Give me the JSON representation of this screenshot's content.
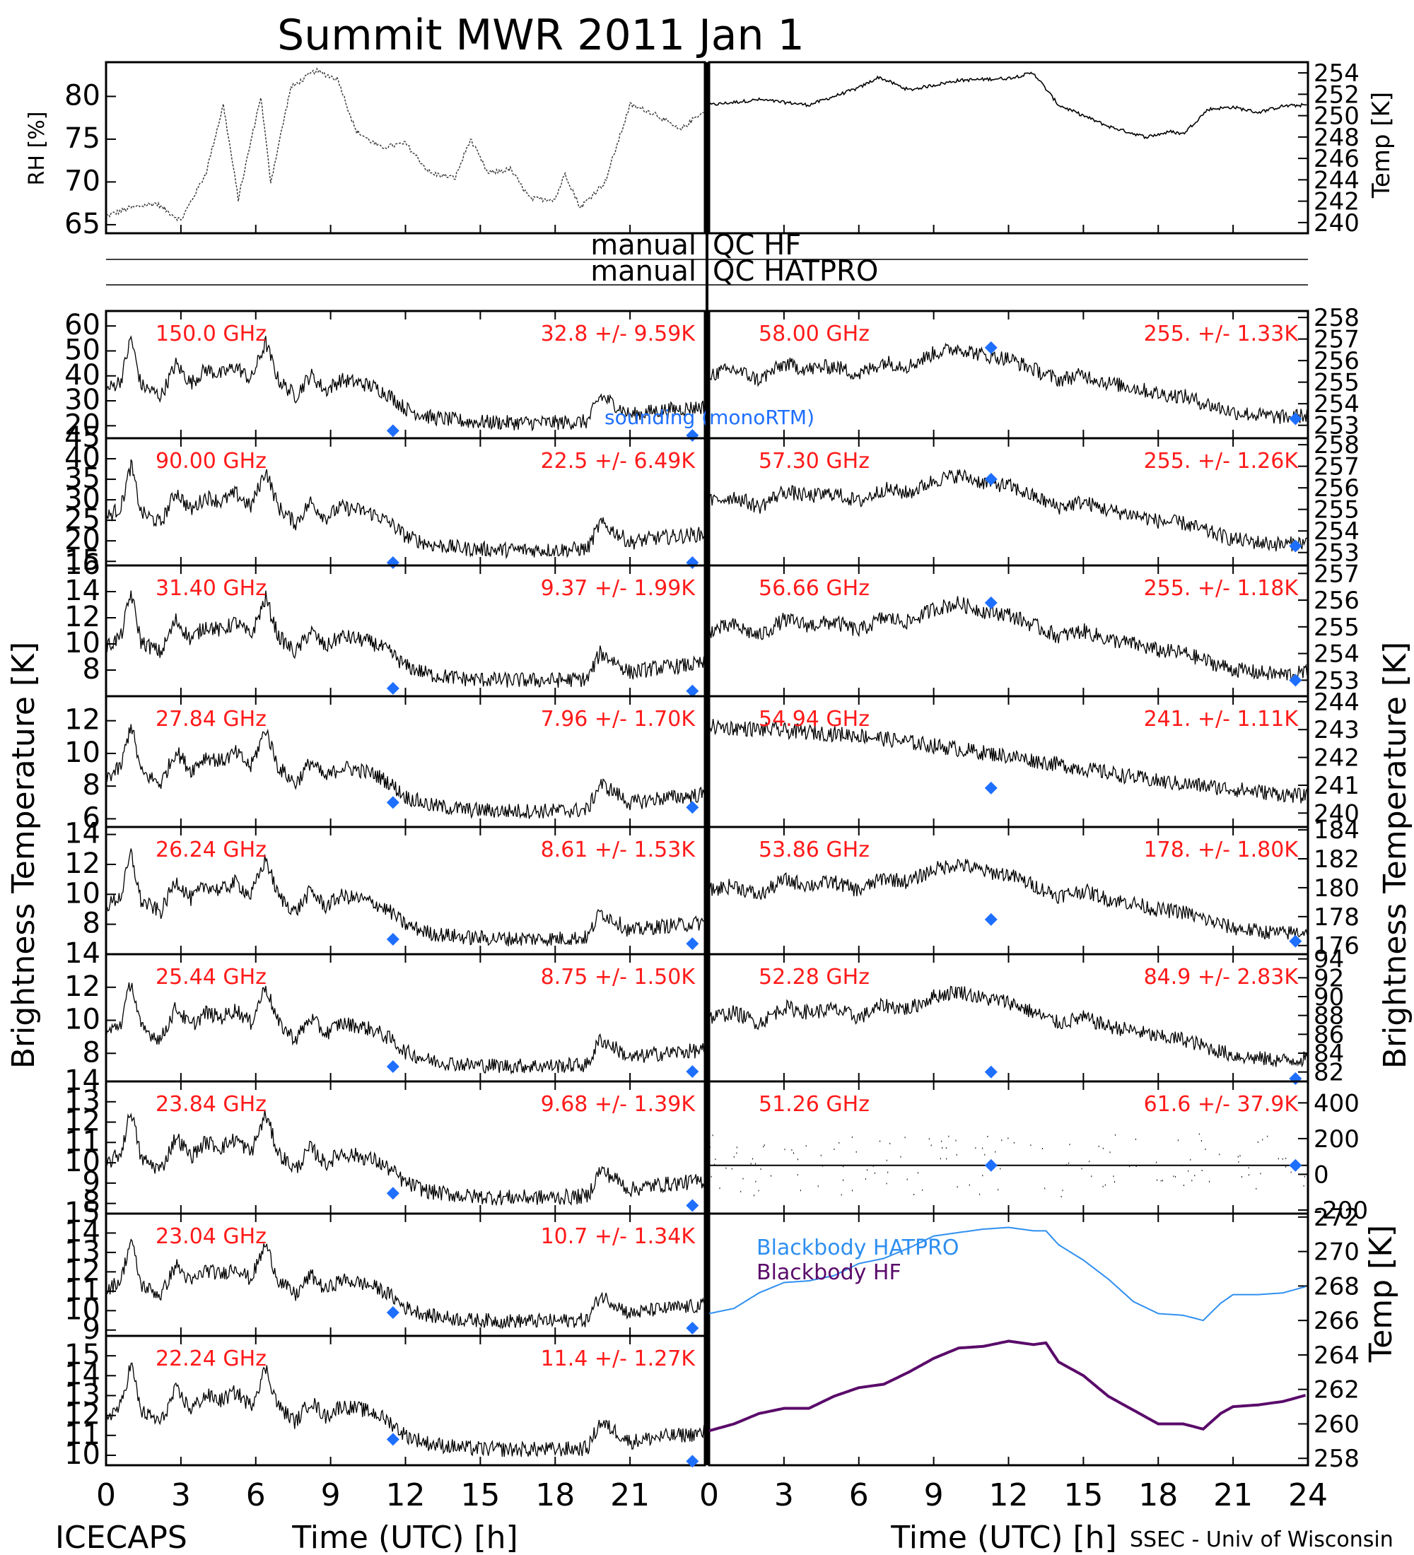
{
  "title": "Summit MWR 2011 Jan  1",
  "footer_left": "ICECAPS",
  "footer_right": "SSEC - Univ of Wisconsin",
  "qc_labels": [
    "manual",
    "QC HF",
    "manual",
    "QC HATPRO"
  ],
  "legend_sounding": "sounding (monoRTM)",
  "y_label_left": "Brightness Temperature [K]",
  "y_label_right": "Brightness Temperature [K]",
  "colors": {
    "data": "#000000",
    "annotation": "#ff1a1a",
    "sounding": "#1f6fff",
    "hatpro": "#2f8ff0",
    "hf": "#5a0a6a"
  },
  "chart_data": {
    "type": "line",
    "time_ticks": [
      "0",
      "3",
      "6",
      "9",
      "12",
      "15",
      "18",
      "21",
      "0",
      "3",
      "6",
      "9",
      "12",
      "15",
      "18",
      "21",
      "24"
    ],
    "x_label": "Time (UTC) [h]",
    "met": {
      "rh_label": "RH [%]",
      "temp_label": "Temp [K]",
      "rh_ticks": [
        "65",
        "70",
        "75",
        "80"
      ],
      "temp_ticks": [
        "240",
        "242",
        "244",
        "246",
        "248",
        "250",
        "252",
        "254"
      ],
      "rh_ylim": [
        64,
        84
      ],
      "temp_ylim": [
        239,
        255
      ],
      "rh_series": [
        [
          0,
          66
        ],
        [
          1,
          67
        ],
        [
          2,
          67.5
        ],
        [
          3,
          65.5
        ],
        [
          4,
          71
        ],
        [
          4.7,
          79
        ],
        [
          5.3,
          68
        ],
        [
          6.2,
          80
        ],
        [
          6.6,
          70
        ],
        [
          7.4,
          81
        ],
        [
          8.4,
          83
        ],
        [
          9.3,
          82
        ],
        [
          10,
          76
        ],
        [
          11,
          74
        ],
        [
          12,
          74.5
        ],
        [
          13,
          71
        ],
        [
          14,
          70.5
        ],
        [
          14.6,
          75
        ],
        [
          15.3,
          71
        ],
        [
          16.2,
          71.5
        ],
        [
          17,
          68
        ],
        [
          18,
          68
        ],
        [
          18.4,
          71
        ],
        [
          19,
          67
        ],
        [
          20,
          70
        ],
        [
          21,
          79
        ],
        [
          22,
          78
        ],
        [
          23,
          76
        ],
        [
          23.8,
          78
        ]
      ],
      "temp_series": [
        [
          0,
          251
        ],
        [
          2,
          251.5
        ],
        [
          4,
          251
        ],
        [
          6,
          252.6
        ],
        [
          6.8,
          253.6
        ],
        [
          8,
          252.4
        ],
        [
          10,
          253.3
        ],
        [
          12,
          253.5
        ],
        [
          13,
          254
        ],
        [
          14,
          251
        ],
        [
          16,
          249
        ],
        [
          17.5,
          248
        ],
        [
          18.5,
          248.5
        ],
        [
          19,
          248.3
        ],
        [
          20,
          250.6
        ],
        [
          21,
          250.8
        ],
        [
          22,
          250.3
        ],
        [
          23,
          250.9
        ],
        [
          24,
          251
        ]
      ]
    },
    "left_panels": [
      {
        "freq": "150.0 GHz",
        "stat": "32.8 +/-  9.59K",
        "ticks": [
          "20",
          "30",
          "40",
          "50",
          "60"
        ],
        "ylim": [
          15,
          66
        ],
        "snd": [
          [
            11.5,
            18
          ],
          [
            23.5,
            15
          ]
        ]
      },
      {
        "freq": "90.00 GHz",
        "stat": "22.5 +/-  6.49K",
        "ticks": [
          "15",
          "20",
          "25",
          "30",
          "35",
          "40",
          "45"
        ],
        "ylim": [
          14,
          45
        ],
        "snd": [
          [
            11.5,
            14.5
          ],
          [
            23.5,
            13.9
          ]
        ]
      },
      {
        "freq": "31.40 GHz",
        "stat": "9.37 +/- 1.99K",
        "ticks": [
          "8",
          "10",
          "12",
          "14",
          "16"
        ],
        "ylim": [
          6,
          16
        ],
        "snd": [
          [
            11.5,
            6.6
          ],
          [
            23.5,
            6.4
          ]
        ]
      },
      {
        "freq": "27.84 GHz",
        "stat": "7.96 +/- 1.70K",
        "ticks": [
          "6",
          "8",
          "10",
          "12"
        ],
        "ylim": [
          5.5,
          13.5
        ],
        "snd": [
          [
            11.5,
            7
          ],
          [
            23.5,
            6.7
          ]
        ]
      },
      {
        "freq": "26.24 GHz",
        "stat": "8.61 +/- 1.53K",
        "ticks": [
          "8",
          "10",
          "12",
          "14"
        ],
        "ylim": [
          6,
          14.5
        ],
        "snd": [
          [
            11.5,
            7
          ],
          [
            23.5,
            6.7
          ]
        ]
      },
      {
        "freq": "25.44 GHz",
        "stat": "8.75 +/- 1.50K",
        "ticks": [
          "8",
          "10",
          "12",
          "14"
        ],
        "ylim": [
          6.3,
          14
        ],
        "snd": [
          [
            11.5,
            7.2
          ],
          [
            23.5,
            6.9
          ]
        ]
      },
      {
        "freq": "23.84 GHz",
        "stat": "9.68 +/- 1.39K",
        "ticks": [
          "8",
          "9",
          "10",
          "11",
          "12",
          "13",
          "14"
        ],
        "ylim": [
          7.5,
          14
        ],
        "snd": [
          [
            11.5,
            8.5
          ],
          [
            23.5,
            7.9
          ]
        ]
      },
      {
        "freq": "23.04 GHz",
        "stat": "10.7 +/- 1.34K",
        "ticks": [
          "9",
          "10",
          "11",
          "12",
          "13",
          "14",
          "15"
        ],
        "ylim": [
          8.7,
          15
        ],
        "snd": [
          [
            11.5,
            9.9
          ],
          [
            23.5,
            9.1
          ]
        ]
      },
      {
        "freq": "22.24 GHz",
        "stat": "11.4 +/- 1.27K",
        "ticks": [
          "10",
          "11",
          "12",
          "13",
          "14",
          "15"
        ],
        "ylim": [
          9.5,
          16
        ],
        "snd": [
          [
            11.5,
            10.8
          ],
          [
            23.5,
            9.7
          ]
        ]
      }
    ],
    "right_panels": [
      {
        "freq": "58.00 GHz",
        "stat": "255. +/- 1.33K",
        "ticks": [
          "253",
          "254",
          "255",
          "256",
          "257",
          "258"
        ],
        "ylim": [
          252.4,
          258.3
        ],
        "snd": [
          [
            11.3,
            256.6
          ],
          [
            23.5,
            253.3
          ]
        ]
      },
      {
        "freq": "57.30 GHz",
        "stat": "255. +/- 1.26K",
        "ticks": [
          "253",
          "254",
          "255",
          "256",
          "257",
          "258"
        ],
        "ylim": [
          252.4,
          258.3
        ],
        "snd": [
          [
            11.3,
            256.4
          ],
          [
            23.5,
            253.3
          ]
        ]
      },
      {
        "freq": "56.66 GHz",
        "stat": "255. +/- 1.18K",
        "ticks": [
          "253",
          "254",
          "255",
          "256",
          "257"
        ],
        "ylim": [
          252.4,
          257.3
        ],
        "snd": [
          [
            11.3,
            255.9
          ],
          [
            23.5,
            253
          ]
        ]
      },
      {
        "freq": "54.94 GHz",
        "stat": "241. +/- 1.11K",
        "ticks": [
          "240",
          "241",
          "242",
          "243",
          "244"
        ],
        "ylim": [
          239.5,
          244.2
        ],
        "snd": [
          [
            11.3,
            240.9
          ]
        ]
      },
      {
        "freq": "53.86 GHz",
        "stat": "178. +/- 1.80K",
        "ticks": [
          "176",
          "178",
          "180",
          "182",
          "184"
        ],
        "ylim": [
          175.4,
          184.2
        ],
        "snd": [
          [
            11.3,
            177.8
          ],
          [
            23.5,
            176.3
          ]
        ]
      },
      {
        "freq": "52.28 GHz",
        "stat": "84.9 +/- 2.83K",
        "ticks": [
          "82",
          "84",
          "86",
          "88",
          "90",
          "92",
          "94"
        ],
        "ylim": [
          81,
          94.5
        ],
        "snd": [
          [
            11.3,
            82
          ],
          [
            23.5,
            81.3
          ]
        ]
      },
      {
        "freq": "51.26 GHz",
        "stat": "61.6 +/- 37.9K",
        "ticks": [
          "-200",
          "0",
          "200",
          "400"
        ],
        "ylim": [
          -220,
          520
        ],
        "snd": [
          [
            11.3,
            50
          ],
          [
            23.5,
            50
          ]
        ]
      }
    ],
    "blackbody": {
      "label": "Temp [K]",
      "ticks": [
        "258",
        "260",
        "262",
        "264",
        "266",
        "268",
        "270",
        "272"
      ],
      "ylim": [
        257.6,
        272.2
      ],
      "legend": [
        "Blackbody HATPRO",
        "Blackbody HF"
      ],
      "hatpro": [
        [
          0,
          266.4
        ],
        [
          1,
          266.7
        ],
        [
          2,
          267.6
        ],
        [
          3,
          268.2
        ],
        [
          4,
          268.3
        ],
        [
          5,
          268.6
        ],
        [
          6,
          269.3
        ],
        [
          7,
          269.6
        ],
        [
          8,
          270.2
        ],
        [
          9,
          270.9
        ],
        [
          10,
          271.1
        ],
        [
          11,
          271.3
        ],
        [
          12,
          271.4
        ],
        [
          13,
          271.2
        ],
        [
          13.5,
          271.2
        ],
        [
          14,
          270.4
        ],
        [
          15,
          269.5
        ],
        [
          16,
          268.4
        ],
        [
          17,
          267.1
        ],
        [
          18,
          266.4
        ],
        [
          19,
          266.3
        ],
        [
          19.8,
          266
        ],
        [
          20.5,
          267
        ],
        [
          21,
          267.5
        ],
        [
          22,
          267.5
        ],
        [
          23,
          267.6
        ],
        [
          24,
          268
        ]
      ],
      "hf": [
        [
          0,
          259.6
        ],
        [
          1,
          260
        ],
        [
          2,
          260.6
        ],
        [
          3,
          260.9
        ],
        [
          4,
          260.9
        ],
        [
          5,
          261.6
        ],
        [
          6,
          262.1
        ],
        [
          7,
          262.3
        ],
        [
          8,
          263
        ],
        [
          9,
          263.8
        ],
        [
          10,
          264.4
        ],
        [
          11,
          264.5
        ],
        [
          12,
          264.8
        ],
        [
          13,
          264.6
        ],
        [
          13.5,
          264.7
        ],
        [
          14,
          263.6
        ],
        [
          15,
          262.8
        ],
        [
          16,
          261.6
        ],
        [
          17,
          260.8
        ],
        [
          18,
          260
        ],
        [
          19,
          260
        ],
        [
          19.8,
          259.7
        ],
        [
          20.5,
          260.6
        ],
        [
          21,
          261
        ],
        [
          22,
          261.1
        ],
        [
          23,
          261.3
        ],
        [
          24,
          261.7
        ]
      ]
    }
  }
}
